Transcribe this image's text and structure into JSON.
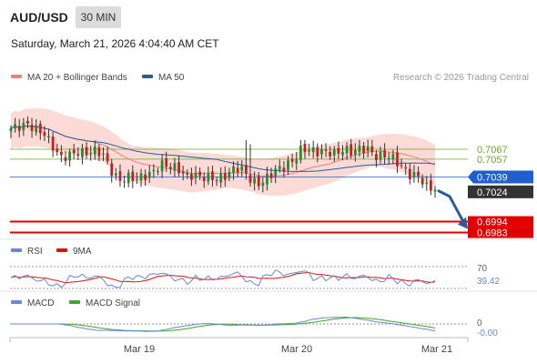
{
  "header": {
    "symbol": "AUD/USD",
    "timeframe": "30 MIN",
    "datetime": "Saturday, March 21, 2026 4:04:40 AM CET",
    "credit": "Research © 2026 Trading Central"
  },
  "legend_main": [
    {
      "label": "MA 20 + Bollinger Bands",
      "color": "#f07e7e"
    },
    {
      "label": "MA 50",
      "color": "#2b5a9b"
    }
  ],
  "legend_rsi": [
    {
      "label": "RSI",
      "color": "#6b86d6"
    },
    {
      "label": "9MA",
      "color": "#e01010"
    }
  ],
  "legend_macd": [
    {
      "label": "MACD",
      "color": "#6b86d6"
    },
    {
      "label": "MACD Signal",
      "color": "#3aa82a"
    }
  ],
  "chart_data": [
    {
      "panel": "price",
      "type": "candlestick",
      "ylim": [
        0.6978,
        0.7122
      ],
      "x_ticks": [
        "Mar 19",
        "Mar 20",
        "Mar 21"
      ],
      "close_path": [
        0.7088,
        0.709,
        0.7092,
        0.7087,
        0.7083,
        0.707,
        0.7058,
        0.7061,
        0.7064,
        0.7063,
        0.7066,
        0.7063,
        0.7046,
        0.7035,
        0.7039,
        0.7037,
        0.704,
        0.7043,
        0.7052,
        0.705,
        0.7048,
        0.704,
        0.7041,
        0.7039,
        0.7038,
        0.7037,
        0.7041,
        0.7049,
        0.7046,
        0.7034,
        0.7032,
        0.704,
        0.7047,
        0.705,
        0.7056,
        0.7068,
        0.7066,
        0.7064,
        0.7065,
        0.7062,
        0.7067,
        0.7064,
        0.7068,
        0.7067,
        0.7059,
        0.7061,
        0.7058,
        0.7049,
        0.7041,
        0.704,
        0.7029,
        0.7027
      ],
      "levels": [
        {
          "value": "0.7067",
          "y": 0.7067,
          "color": "#6aa82a",
          "style": "support-resistance"
        },
        {
          "value": "0.7057",
          "y": 0.7057,
          "color": "#6aa82a",
          "style": "support-resistance"
        },
        {
          "value": "0.7039",
          "y": 0.7039,
          "color": "#1f5fd1",
          "style": "pivot"
        },
        {
          "value": "0.7024",
          "y": 0.7024,
          "color": "#333333",
          "style": "last-price"
        },
        {
          "value": "0.6994",
          "y": 0.6994,
          "color": "#e00000",
          "style": "target"
        },
        {
          "value": "0.6983",
          "y": 0.6983,
          "color": "#e00000",
          "style": "target"
        }
      ],
      "series": [
        {
          "name": "MA 20 + Bollinger Bands",
          "color": "#f07e7e"
        },
        {
          "name": "MA 50",
          "color": "#2b5a9b"
        }
      ],
      "forecast": "down"
    },
    {
      "panel": "rsi",
      "type": "line",
      "ylim": [
        30,
        70
      ],
      "reference_levels": [
        "70",
        "30"
      ],
      "last_value_label": "39.42",
      "series": [
        {
          "name": "RSI",
          "color": "#6b86d6"
        },
        {
          "name": "9MA",
          "color": "#e01010"
        }
      ]
    },
    {
      "panel": "macd",
      "type": "line",
      "zero_label": "0",
      "last_value_label": "-0.00",
      "series": [
        {
          "name": "MACD",
          "color": "#6b86d6"
        },
        {
          "name": "MACD Signal",
          "color": "#3aa82a"
        }
      ]
    }
  ]
}
